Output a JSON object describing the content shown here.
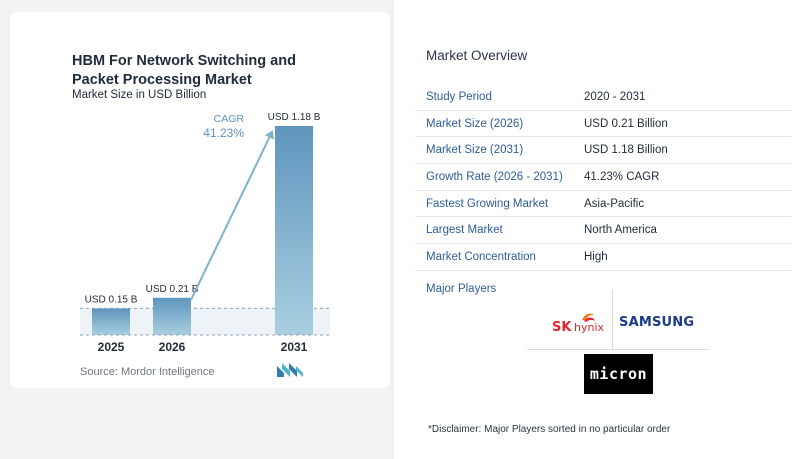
{
  "chart_data": {
    "type": "bar",
    "title": "HBM For Network Switching and Packet Processing Market",
    "subtitle": "Market Size in USD Billion",
    "categories": [
      "2025",
      "2026",
      "2031"
    ],
    "values": [
      0.15,
      0.21,
      1.18
    ],
    "data_labels": [
      "USD 0.15 B",
      "USD 0.21 B",
      "USD 1.18 B"
    ],
    "cagr_label": "CAGR",
    "cagr_value": "41.23%",
    "ylim": [
      0,
      1.2
    ],
    "colors": {
      "bar_top": "#5f95bd",
      "bar_bottom": "#a9cfe0",
      "arrow": "#7fb1d0",
      "cagr_text": "#5f95bd"
    }
  },
  "source": "Source:  Mordor Intelligence",
  "source_logo": "mordor-intelligence-logo",
  "overview": {
    "title": "Market Overview",
    "rows": [
      {
        "label": "Study Period",
        "value": "2020 - 2031"
      },
      {
        "label": "Market Size (2026)",
        "value": "USD 0.21 Billion"
      },
      {
        "label": "Market Size (2031)",
        "value": "USD 1.18 Billion"
      },
      {
        "label": "Growth Rate (2026 - 2031)",
        "value": "41.23% CAGR"
      },
      {
        "label": "Fastest Growing Market",
        "value": "Asia-Pacific"
      },
      {
        "label": "Largest Market",
        "value": "North America"
      },
      {
        "label": "Market Concentration",
        "value": "High"
      }
    ]
  },
  "players": {
    "title": "Major Players",
    "sk_hynix": {
      "sk": "SK",
      "hynix": "hynix"
    },
    "samsung": "SAMSUNG",
    "micron": "micron"
  },
  "disclaimer": "*Disclaimer: Major Players sorted in no particular order"
}
